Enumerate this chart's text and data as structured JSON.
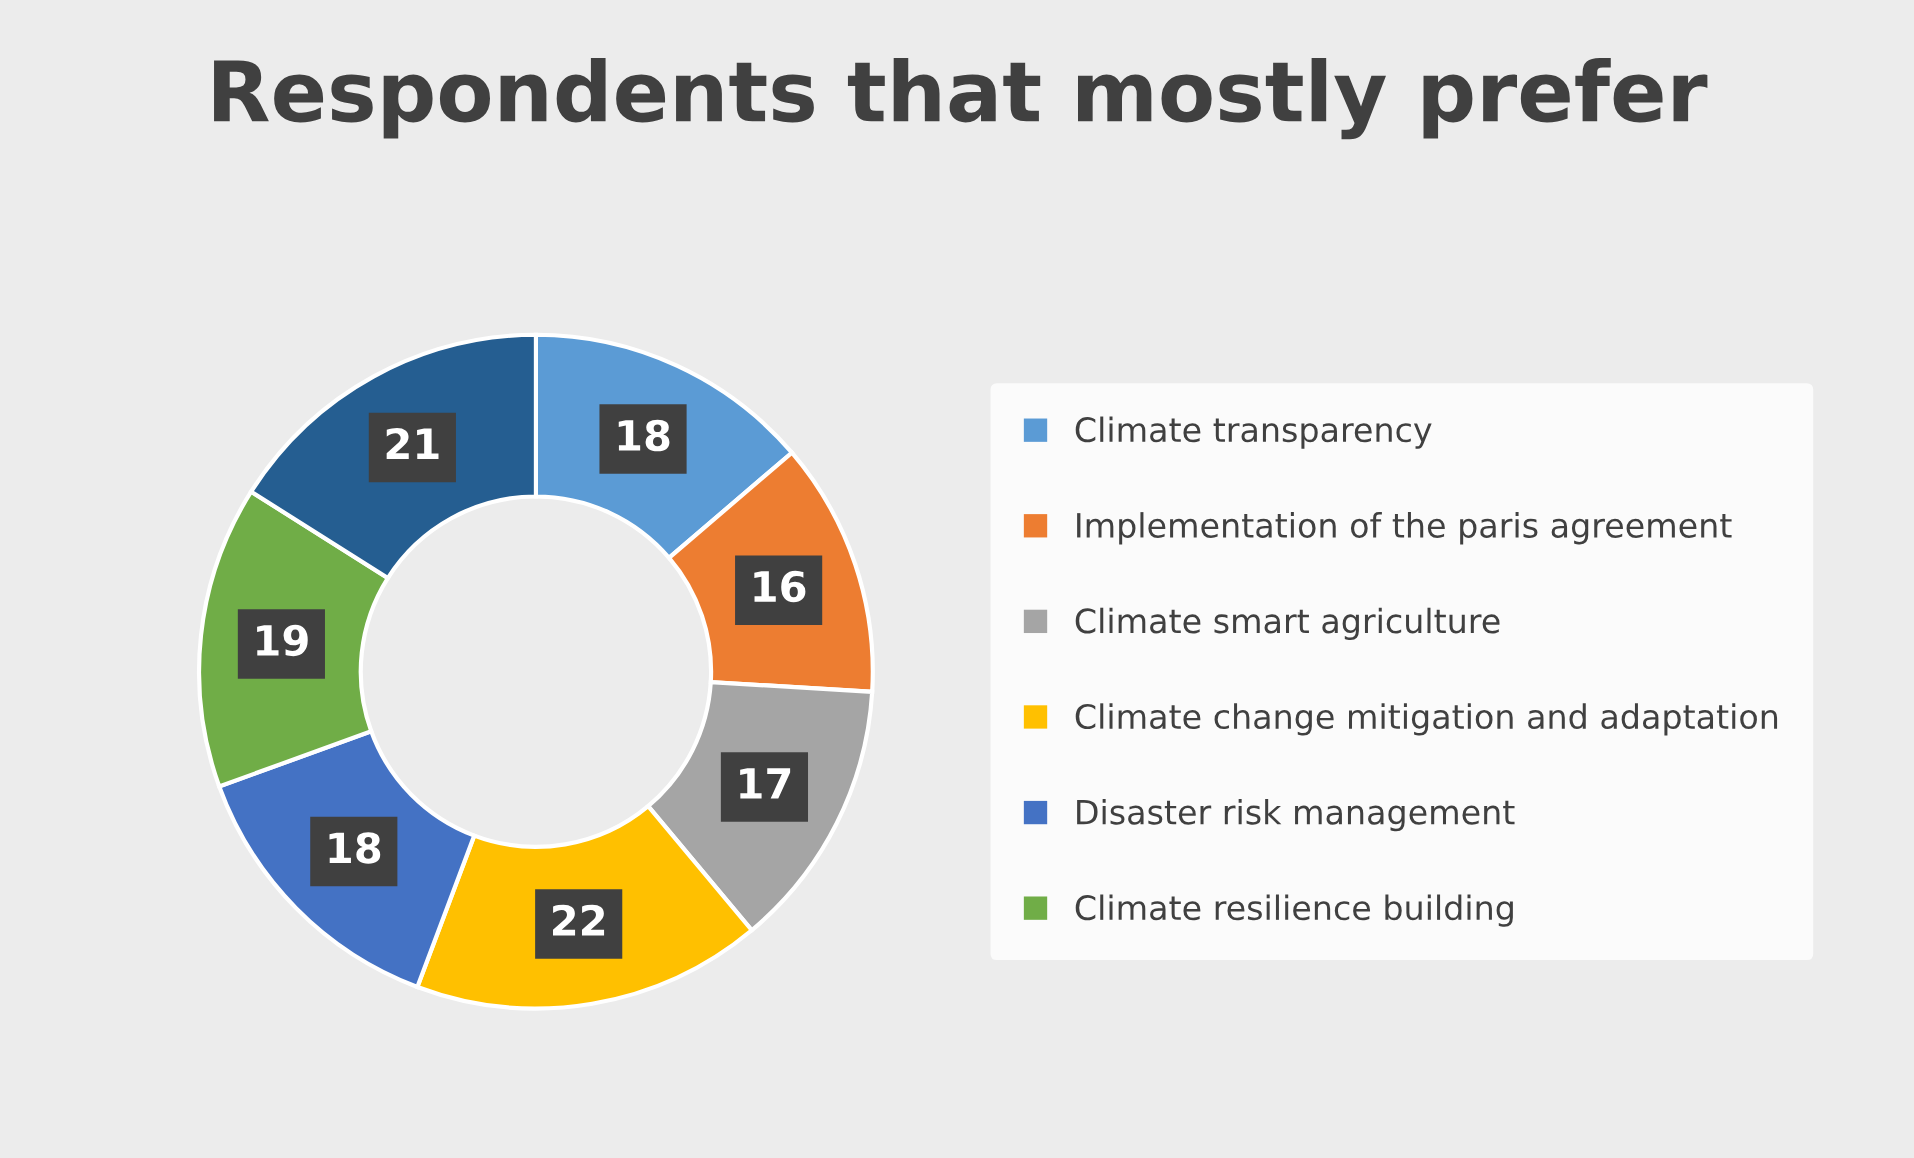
{
  "chart_data": {
    "type": "donut",
    "title": "Respondents that mostly prefer",
    "categories": [
      "Climate transparency",
      "Implementation of the paris agreement",
      "Climate smart agriculture",
      "Climate change mitigation and adaptation",
      "Disaster risk management",
      "Climate resilience building",
      null
    ],
    "values": [
      18,
      16,
      17,
      22,
      18,
      19,
      21
    ],
    "colors": [
      "#5b9bd5",
      "#ed7d31",
      "#a5a5a5",
      "#ffc000",
      "#4472c4",
      "#70ad47",
      "#255e91"
    ],
    "data_labels": true,
    "legend": "right"
  }
}
